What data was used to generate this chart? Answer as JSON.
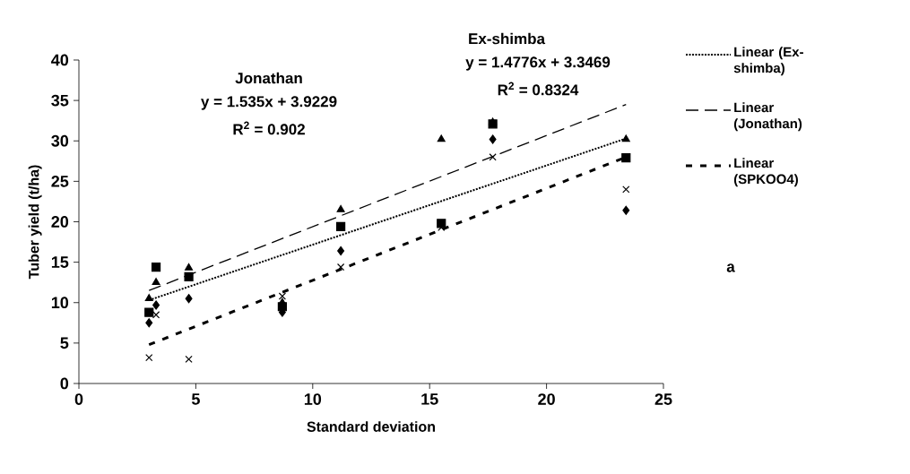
{
  "chart_data": {
    "type": "scatter",
    "xlabel": "Standard deviation",
    "ylabel": "Tuber yield (t/ha)",
    "xlim": [
      0,
      25
    ],
    "xticks": [
      0,
      5,
      10,
      15,
      20,
      25
    ],
    "ylim": [
      0,
      40
    ],
    "yticks": [
      0,
      5,
      10,
      15,
      20,
      25,
      30,
      35,
      40
    ],
    "grid": false,
    "legend": "right",
    "annotations": [
      "Jonathan",
      "y = 1.535x + 3.9229",
      "R$^{2}$ = 0.902",
      "Ex-shimba",
      "y = 1.4776x + 3.3469",
      "R$^{2}$ = 0.8324",
      "a"
    ],
    "series": [
      {
        "color": "#000000",
        "marker": "diamond",
        "x": [
          3.0,
          3.3,
          4.7,
          8.7,
          11.2,
          15.5,
          17.7,
          23.4
        ],
        "values": [
          7.5,
          9.7,
          10.5,
          8.8,
          16.4,
          null,
          30.2,
          21.4
        ]
      },
      {
        "color": "#000000",
        "marker": "square",
        "x": [
          3.0,
          3.3,
          4.7,
          8.7,
          11.2,
          15.5,
          17.7,
          23.4
        ],
        "values": [
          8.8,
          14.4,
          13.2,
          9.5,
          19.4,
          19.8,
          32.1,
          27.9
        ]
      },
      {
        "color": "#000000",
        "marker": "triangle",
        "x": [
          3.0,
          3.3,
          4.7,
          8.7,
          11.2,
          15.5,
          17.7,
          23.4
        ],
        "values": [
          10.5,
          12.5,
          14.3,
          10.0,
          21.5,
          30.2,
          32.3,
          30.2
        ]
      },
      {
        "color": "#000000",
        "marker": "cross",
        "x": [
          3.0,
          3.3,
          4.7,
          8.7,
          11.2,
          15.5,
          17.7,
          23.4
        ],
        "values": [
          3.2,
          8.5,
          3.0,
          10.8,
          14.4,
          19.3,
          28.0,
          24.0
        ]
      },
      {
        "name": "Linear (Ex-shimba)",
        "type": "line",
        "color": "#000000",
        "marker": "none",
        "line_style": "dotted",
        "x": [
          3.0,
          23.4
        ],
        "values": [
          10.3,
          30.3
        ]
      },
      {
        "name": "Linear (Jonathan)",
        "type": "line",
        "color": "#000000",
        "marker": "none",
        "line_style": "dashed",
        "x": [
          3.0,
          23.4
        ],
        "values": [
          11.5,
          34.5
        ]
      },
      {
        "name": "Linear (SPKOO4)",
        "type": "line",
        "color": "#000000",
        "marker": "none",
        "line_style": "dashed",
        "x": [
          3.0,
          23.4
        ],
        "values": [
          4.8,
          28.0
        ]
      }
    ]
  }
}
